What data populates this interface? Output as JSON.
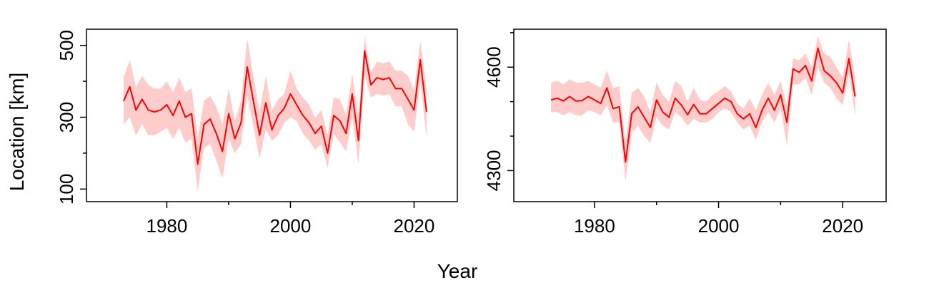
{
  "chart_data": {
    "xlabel": "Year",
    "ylabel": "Location [km]",
    "panels": [
      {
        "type": "line",
        "xlim": [
          1967,
          2027
        ],
        "ylim": [
          65,
          545
        ],
        "x_major_ticks": [
          1980,
          2000,
          2020
        ],
        "x_minor_ticks": [
          1990,
          2010
        ],
        "y_major_ticks": [
          100,
          300,
          500
        ],
        "y_minor_ticks": [
          200,
          400
        ],
        "series": [
          {
            "line_color": "#ff0000",
            "band_color": "#ffcccc",
            "x": [
              1973,
              1974,
              1975,
              1976,
              1977,
              1978,
              1979,
              1980,
              1981,
              1982,
              1983,
              1984,
              1985,
              1986,
              1987,
              1988,
              1989,
              1990,
              1991,
              1992,
              1993,
              1994,
              1995,
              1996,
              1997,
              1998,
              1999,
              2000,
              2001,
              2002,
              2003,
              2004,
              2005,
              2006,
              2007,
              2008,
              2009,
              2010,
              2011,
              2012,
              2013,
              2014,
              2015,
              2016,
              2017,
              2018,
              2019,
              2020,
              2021,
              2022
            ],
            "y": [
              345,
              385,
              320,
              350,
              320,
              315,
              320,
              335,
              305,
              345,
              300,
              310,
              170,
              280,
              295,
              255,
              205,
              310,
              240,
              285,
              440,
              345,
              250,
              340,
              265,
              305,
              325,
              365,
              335,
              305,
              285,
              255,
              275,
              200,
              305,
              290,
              255,
              365,
              235,
              485,
              390,
              410,
              405,
              410,
              380,
              380,
              350,
              320,
              460,
              315
            ],
            "lower": [
              280,
              300,
              250,
              280,
              250,
              250,
              260,
              270,
              240,
              270,
              230,
              240,
              95,
              215,
              225,
              180,
              130,
              240,
              200,
              225,
              360,
              275,
              185,
              265,
              235,
              250,
              285,
              300,
              290,
              255,
              235,
              210,
              225,
              160,
              255,
              230,
              205,
              300,
              170,
              420,
              355,
              365,
              360,
              365,
              330,
              330,
              280,
              260,
              400,
              245
            ],
            "upper": [
              410,
              460,
              385,
              415,
              390,
              380,
              380,
              400,
              370,
              410,
              370,
              380,
              245,
              345,
              360,
              330,
              280,
              380,
              290,
              345,
              520,
              415,
              315,
              415,
              320,
              350,
              365,
              430,
              380,
              355,
              335,
              300,
              320,
              250,
              355,
              350,
              305,
              420,
              300,
              525,
              425,
              455,
              450,
              455,
              430,
              430,
              415,
              375,
              515,
              380
            ]
          }
        ]
      },
      {
        "type": "line",
        "xlim": [
          1967,
          2027
        ],
        "ylim": [
          4210,
          4710
        ],
        "x_major_ticks": [
          1980,
          2000,
          2020
        ],
        "x_minor_ticks": [
          1990,
          2010
        ],
        "y_major_ticks": [
          4300,
          4600
        ],
        "y_minor_ticks": [
          4400,
          4500,
          4700
        ],
        "series": [
          {
            "line_color": "#ff0000",
            "band_color": "#ffcccc",
            "x": [
              1973,
              1974,
              1975,
              1976,
              1977,
              1978,
              1979,
              1980,
              1981,
              1982,
              1983,
              1984,
              1985,
              1986,
              1987,
              1988,
              1989,
              1990,
              1991,
              1992,
              1993,
              1994,
              1995,
              1996,
              1997,
              1998,
              1999,
              2000,
              2001,
              2002,
              2003,
              2004,
              2005,
              2006,
              2007,
              2008,
              2009,
              2010,
              2011,
              2012,
              2013,
              2014,
              2015,
              2016,
              2017,
              2018,
              2019,
              2020,
              2021,
              2022
            ],
            "y": [
              4505,
              4510,
              4502,
              4515,
              4502,
              4503,
              4515,
              4505,
              4495,
              4540,
              4480,
              4485,
              4325,
              4465,
              4485,
              4455,
              4425,
              4505,
              4470,
              4455,
              4510,
              4490,
              4462,
              4492,
              4465,
              4465,
              4480,
              4495,
              4510,
              4500,
              4465,
              4450,
              4465,
              4425,
              4475,
              4510,
              4475,
              4520,
              4440,
              4595,
              4585,
              4605,
              4560,
              4655,
              4590,
              4575,
              4555,
              4525,
              4625,
              4515
            ],
            "lower": [
              4470,
              4470,
              4460,
              4470,
              4460,
              4460,
              4475,
              4470,
              4460,
              4490,
              4440,
              4440,
              4270,
              4410,
              4430,
              4400,
              4380,
              4455,
              4430,
              4420,
              4470,
              4455,
              4430,
              4450,
              4440,
              4440,
              4450,
              4470,
              4480,
              4470,
              4440,
              4420,
              4430,
              4390,
              4440,
              4470,
              4440,
              4480,
              4375,
              4550,
              4550,
              4570,
              4520,
              4600,
              4555,
              4540,
              4510,
              4490,
              4580,
              4460
            ],
            "upper": [
              4555,
              4560,
              4550,
              4565,
              4555,
              4555,
              4560,
              4550,
              4540,
              4590,
              4540,
              4545,
              4380,
              4525,
              4540,
              4515,
              4470,
              4555,
              4520,
              4500,
              4560,
              4545,
              4500,
              4540,
              4505,
              4500,
              4520,
              4530,
              4545,
              4530,
              4495,
              4480,
              4510,
              4475,
              4520,
              4555,
              4520,
              4560,
              4490,
              4625,
              4620,
              4640,
              4600,
              4690,
              4640,
              4630,
              4600,
              4570,
              4680,
              4570
            ]
          }
        ]
      }
    ]
  }
}
